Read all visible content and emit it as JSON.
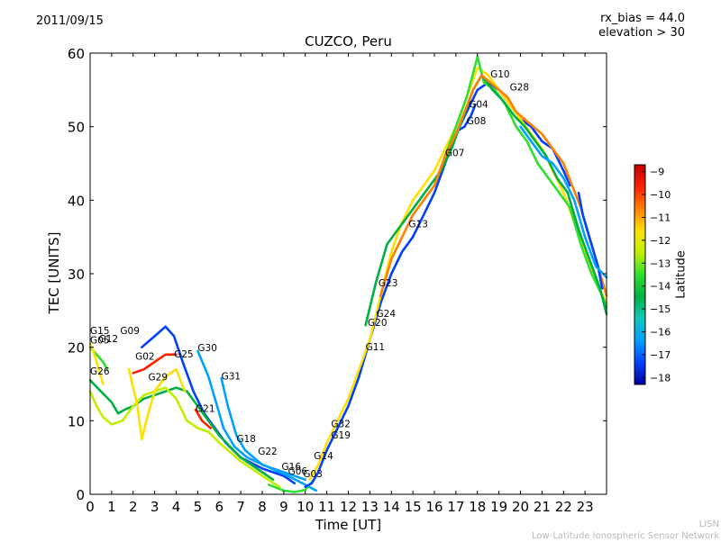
{
  "header": {
    "date": "2011/09/15",
    "bias_line1": "rx_bias = 44.0",
    "bias_line2": "elevation > 30"
  },
  "footer": {
    "line1": "LISN",
    "line2": "Low-Latitude Ionospheric Sensor Network"
  },
  "colorbar": {
    "label": "Latitude",
    "ticks": [
      -9,
      -10,
      -11,
      -12,
      -13,
      -14,
      -15,
      -16,
      -17,
      -18
    ],
    "range": [
      -18.3,
      -8.7
    ],
    "stops": [
      "#0000a0",
      "#0040ff",
      "#00a0ff",
      "#10c8c0",
      "#00b040",
      "#30e030",
      "#c0f000",
      "#ffe000",
      "#ff8000",
      "#ff2000",
      "#c00000"
    ]
  },
  "chart_data": {
    "type": "line",
    "title": "CUZCO, Peru",
    "xlabel": "Time [UT]",
    "ylabel": "TEC [UNITS]",
    "xlim": [
      0,
      24
    ],
    "ylim": [
      0,
      60
    ],
    "xticks": [
      0,
      1,
      2,
      3,
      4,
      5,
      6,
      7,
      8,
      9,
      10,
      11,
      12,
      13,
      14,
      15,
      16,
      17,
      18,
      19,
      20,
      21,
      22,
      23
    ],
    "yticks": [
      0,
      10,
      20,
      30,
      40,
      50,
      60
    ],
    "grid": false,
    "series": [
      {
        "lat": -17.5,
        "points": [
          [
            2.4,
            20
          ],
          [
            3,
            21.5
          ],
          [
            3.5,
            22.8
          ],
          [
            3.9,
            21.5
          ],
          [
            4.3,
            18
          ],
          [
            4.8,
            14
          ],
          [
            5.3,
            11
          ],
          [
            5.8,
            9
          ],
          [
            6.3,
            7
          ],
          [
            7,
            5
          ],
          [
            8,
            3.5
          ],
          [
            9,
            2.5
          ],
          [
            9.5,
            1.5
          ]
        ]
      },
      {
        "lat": -16.5,
        "points": [
          [
            6.1,
            15.8
          ],
          [
            6.4,
            12
          ],
          [
            6.8,
            8
          ],
          [
            7.2,
            6
          ],
          [
            8,
            4
          ],
          [
            9,
            3
          ],
          [
            10,
            2
          ]
        ]
      },
      {
        "lat": -16.0,
        "points": [
          [
            5,
            19.5
          ],
          [
            5.5,
            16
          ],
          [
            5.9,
            12
          ],
          [
            6.2,
            9
          ],
          [
            6.7,
            6.5
          ],
          [
            7.3,
            5
          ],
          [
            8.2,
            3.8
          ],
          [
            9.2,
            2.5
          ],
          [
            10,
            1.3
          ],
          [
            10.5,
            0.5
          ]
        ]
      },
      {
        "lat": -14.5,
        "points": [
          [
            0,
            15.5
          ],
          [
            0.5,
            14
          ],
          [
            1,
            12.5
          ],
          [
            1.3,
            11
          ],
          [
            1.6,
            11.5
          ],
          [
            2,
            12
          ],
          [
            2.5,
            13
          ],
          [
            3,
            13.5
          ],
          [
            3.5,
            14
          ],
          [
            4,
            14.5
          ],
          [
            4.5,
            14
          ],
          [
            5,
            12
          ],
          [
            5.5,
            10
          ],
          [
            6,
            8
          ],
          [
            7,
            5
          ],
          [
            8,
            3
          ],
          [
            8.5,
            2
          ]
        ]
      },
      {
        "lat": -13.0,
        "points": [
          [
            0,
            14
          ],
          [
            0.3,
            12
          ],
          [
            0.6,
            10.5
          ],
          [
            1,
            9.5
          ],
          [
            1.5,
            10
          ],
          [
            2,
            12
          ],
          [
            2.5,
            13.5
          ],
          [
            3,
            14
          ],
          [
            3.5,
            14.5
          ],
          [
            4,
            13
          ],
          [
            4.5,
            10
          ],
          [
            5,
            9
          ],
          [
            5.5,
            8.5
          ],
          [
            6,
            7
          ],
          [
            7,
            4.5
          ],
          [
            8,
            2.5
          ],
          [
            8.8,
            1
          ]
        ]
      },
      {
        "lat": -12.0,
        "points": [
          [
            1.8,
            17
          ],
          [
            2.2,
            12
          ],
          [
            2.4,
            7.5
          ],
          [
            2.7,
            11
          ],
          [
            3,
            14
          ],
          [
            3.5,
            16
          ],
          [
            4,
            17
          ],
          [
            4.4,
            14
          ]
        ]
      },
      {
        "lat": -9.5,
        "points": [
          [
            2,
            16.5
          ],
          [
            2.5,
            17
          ],
          [
            3,
            18
          ],
          [
            3.5,
            19
          ],
          [
            4,
            19
          ]
        ]
      },
      {
        "lat": -13.5,
        "points": [
          [
            0,
            20
          ],
          [
            0.3,
            19
          ],
          [
            0.6,
            18
          ],
          [
            0.8,
            17
          ]
        ]
      },
      {
        "lat": -11.5,
        "points": [
          [
            0,
            20.5
          ],
          [
            0.2,
            19
          ],
          [
            0.4,
            17
          ],
          [
            0.6,
            15
          ]
        ]
      },
      {
        "lat": -10.0,
        "points": [
          [
            4.9,
            11.5
          ],
          [
            5.2,
            10
          ],
          [
            5.6,
            9
          ]
        ]
      },
      {
        "lat": -13.5,
        "points": [
          [
            8.3,
            1.3
          ],
          [
            9,
            0.5
          ],
          [
            9.5,
            0.3
          ],
          [
            10,
            0.6
          ],
          [
            10.4,
            2
          ]
        ]
      },
      {
        "lat": -17.0,
        "points": [
          [
            10,
            1
          ],
          [
            10.3,
            1.5
          ],
          [
            10.6,
            3
          ],
          [
            11,
            6
          ],
          [
            11.5,
            9
          ],
          [
            12,
            12
          ],
          [
            12.5,
            16
          ],
          [
            13,
            21
          ],
          [
            13.5,
            26
          ],
          [
            14,
            30
          ],
          [
            14.5,
            33
          ],
          [
            15,
            35
          ],
          [
            15.5,
            38
          ],
          [
            16,
            41
          ],
          [
            16.5,
            45
          ],
          [
            17,
            49
          ],
          [
            17.5,
            52
          ],
          [
            18,
            55
          ],
          [
            18.5,
            56
          ],
          [
            19,
            55
          ],
          [
            19.5,
            53
          ],
          [
            20,
            51
          ],
          [
            20.5,
            50
          ],
          [
            21,
            48
          ],
          [
            21.5,
            47
          ],
          [
            22,
            44
          ],
          [
            22.3,
            42
          ]
        ]
      },
      {
        "lat": -17.5,
        "points": [
          [
            17.1,
            49.5
          ],
          [
            17.4,
            50
          ],
          [
            17.7,
            51.5
          ],
          [
            17.9,
            53
          ]
        ]
      },
      {
        "lat": -12.0,
        "points": [
          [
            10.2,
            2
          ],
          [
            10.6,
            4
          ],
          [
            11,
            7
          ],
          [
            11.5,
            10
          ],
          [
            12,
            13
          ],
          [
            12.5,
            17
          ],
          [
            13,
            21
          ],
          [
            13.5,
            27
          ],
          [
            14,
            33
          ],
          [
            14.5,
            37
          ],
          [
            15,
            40
          ],
          [
            15.5,
            42
          ],
          [
            16,
            44
          ],
          [
            16.5,
            47
          ],
          [
            17,
            50
          ],
          [
            17.5,
            54
          ],
          [
            18,
            58
          ],
          [
            18.5,
            57
          ],
          [
            19,
            55
          ],
          [
            19.5,
            53
          ],
          [
            20,
            51
          ],
          [
            20.5,
            49
          ],
          [
            21,
            47
          ],
          [
            21.5,
            44
          ],
          [
            22,
            41
          ],
          [
            22.5,
            37
          ],
          [
            23,
            33
          ],
          [
            23.5,
            29
          ],
          [
            24,
            26
          ]
        ]
      },
      {
        "lat": -13.2,
        "points": [
          [
            16,
            42
          ],
          [
            16.5,
            46
          ],
          [
            17,
            50
          ],
          [
            17.5,
            54
          ],
          [
            18,
            59.5
          ],
          [
            18.3,
            56
          ],
          [
            18.8,
            55
          ],
          [
            19.3,
            53
          ],
          [
            19.8,
            50
          ],
          [
            20.3,
            48
          ],
          [
            20.8,
            45
          ],
          [
            21.3,
            43
          ],
          [
            21.8,
            41
          ],
          [
            22.3,
            39
          ],
          [
            22.8,
            34
          ],
          [
            23.3,
            30
          ],
          [
            23.8,
            27
          ],
          [
            24,
            25.5
          ]
        ]
      },
      {
        "lat": -14.5,
        "points": [
          [
            12.8,
            23
          ],
          [
            13.3,
            29
          ],
          [
            13.8,
            34
          ],
          [
            14.3,
            36
          ],
          [
            14.8,
            38
          ],
          [
            15.3,
            40
          ],
          [
            15.8,
            42
          ],
          [
            16.3,
            44
          ],
          [
            16.8,
            47
          ],
          [
            17.3,
            51
          ],
          [
            17.8,
            55
          ],
          [
            18.2,
            57
          ],
          [
            18.7,
            55
          ],
          [
            19.2,
            53.5
          ],
          [
            19.7,
            51.5
          ],
          [
            20.2,
            50
          ],
          [
            20.7,
            48
          ],
          [
            21.2,
            46
          ],
          [
            21.7,
            43
          ],
          [
            22.2,
            41
          ],
          [
            22.7,
            36
          ],
          [
            23.2,
            32
          ],
          [
            23.7,
            28
          ],
          [
            24,
            24.5
          ]
        ]
      },
      {
        "lat": -10.5,
        "points": [
          [
            13.5,
            27
          ],
          [
            14,
            32
          ],
          [
            14.5,
            35
          ],
          [
            15,
            38
          ],
          [
            15.5,
            40
          ],
          [
            16,
            42
          ],
          [
            16.5,
            46
          ],
          [
            17,
            49
          ],
          [
            17.4,
            52
          ],
          [
            17.8,
            55
          ],
          [
            18.2,
            57
          ],
          [
            18.6,
            56
          ],
          [
            19,
            55
          ],
          [
            19.4,
            54
          ],
          [
            19.8,
            52
          ],
          [
            20.2,
            51
          ],
          [
            20.6,
            50
          ],
          [
            21,
            49
          ],
          [
            21.5,
            47
          ],
          [
            22,
            45
          ],
          [
            22.4,
            42
          ],
          [
            22.8,
            39
          ],
          [
            23.2,
            35
          ],
          [
            23.6,
            31
          ],
          [
            24,
            27
          ]
        ]
      },
      {
        "lat": -17.5,
        "points": [
          [
            22.7,
            41
          ],
          [
            22.9,
            38
          ],
          [
            23.2,
            35
          ],
          [
            23.6,
            31
          ],
          [
            23.8,
            28
          ]
        ]
      },
      {
        "lat": -16.5,
        "points": [
          [
            20,
            50
          ],
          [
            20.5,
            48
          ],
          [
            21,
            46
          ],
          [
            21.5,
            45
          ],
          [
            22,
            43
          ],
          [
            22.5,
            40
          ],
          [
            23,
            35
          ],
          [
            23.5,
            31
          ],
          [
            24,
            29.5
          ]
        ]
      }
    ],
    "satellite_labels": [
      {
        "name": "G15",
        "x": 0.0,
        "y": 21.8
      },
      {
        "name": "G05",
        "x": 0.0,
        "y": 20.5
      },
      {
        "name": "G12",
        "x": 0.4,
        "y": 20.7
      },
      {
        "name": "G09",
        "x": 1.4,
        "y": 21.8
      },
      {
        "name": "G26",
        "x": 0.0,
        "y": 16.3
      },
      {
        "name": "G02",
        "x": 2.1,
        "y": 18.3
      },
      {
        "name": "G29",
        "x": 2.7,
        "y": 15.5
      },
      {
        "name": "G25",
        "x": 3.9,
        "y": 18.6
      },
      {
        "name": "G30",
        "x": 5.0,
        "y": 19.5
      },
      {
        "name": "G31",
        "x": 6.1,
        "y": 15.6
      },
      {
        "name": "G21",
        "x": 4.9,
        "y": 11.2
      },
      {
        "name": "G18",
        "x": 6.8,
        "y": 7.1
      },
      {
        "name": "G22",
        "x": 7.8,
        "y": 5.4
      },
      {
        "name": "G16",
        "x": 8.9,
        "y": 3.3
      },
      {
        "name": "G06",
        "x": 9.2,
        "y": 2.7
      },
      {
        "name": "G03",
        "x": 9.9,
        "y": 2.3
      },
      {
        "name": "G14",
        "x": 10.4,
        "y": 4.8
      },
      {
        "name": "G19",
        "x": 11.2,
        "y": 7.6
      },
      {
        "name": "G32",
        "x": 11.2,
        "y": 9.1
      },
      {
        "name": "G11",
        "x": 12.8,
        "y": 19.6
      },
      {
        "name": "G20",
        "x": 12.9,
        "y": 22.9
      },
      {
        "name": "G24",
        "x": 13.3,
        "y": 24.1
      },
      {
        "name": "G23",
        "x": 13.4,
        "y": 28.3
      },
      {
        "name": "G13",
        "x": 14.8,
        "y": 36.3
      },
      {
        "name": "G07",
        "x": 16.5,
        "y": 46.0
      },
      {
        "name": "G08",
        "x": 17.5,
        "y": 50.3
      },
      {
        "name": "G04",
        "x": 17.6,
        "y": 52.6
      },
      {
        "name": "G10",
        "x": 18.6,
        "y": 56.7
      },
      {
        "name": "G28",
        "x": 19.5,
        "y": 54.9
      }
    ]
  }
}
